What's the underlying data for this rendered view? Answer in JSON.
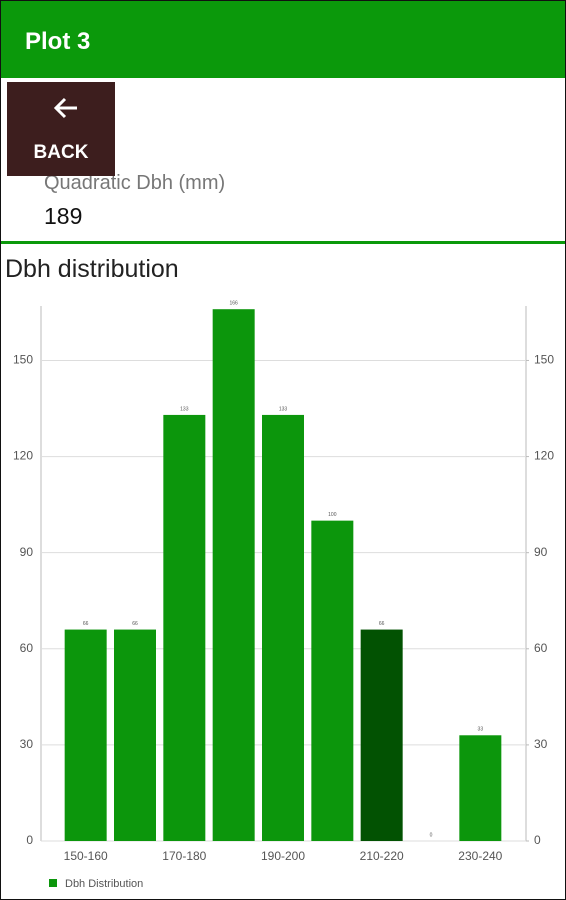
{
  "header": {
    "title": "Plot 3"
  },
  "back_button": {
    "label": "BACK"
  },
  "stat": {
    "label": "Quadratic Dbh (mm)",
    "value": "189"
  },
  "section_title": "Dbh distribution",
  "chart_data": {
    "type": "bar",
    "categories": [
      "150-160",
      null,
      "170-180",
      null,
      "190-200",
      null,
      "210-220",
      null,
      "230-240"
    ],
    "series": [
      {
        "name": "Dbh Distribution",
        "color": "#0c960c",
        "colors": [
          "#0c960c",
          "#0c960c",
          "#0c960c",
          "#0c960c",
          "#0c960c",
          "#0c960c",
          "#025202",
          "#0c960c",
          "#0c960c"
        ],
        "values": [
          66,
          66,
          133,
          166,
          133,
          100,
          66,
          0,
          33
        ]
      }
    ],
    "ylim": [
      0,
      167
    ],
    "yticks": [
      0,
      30,
      60,
      90,
      120,
      150
    ],
    "y2lim": [
      0,
      167
    ],
    "y2ticks": [
      0,
      30,
      60,
      90,
      120,
      150
    ],
    "grid": true,
    "legend": "bottom-left"
  }
}
